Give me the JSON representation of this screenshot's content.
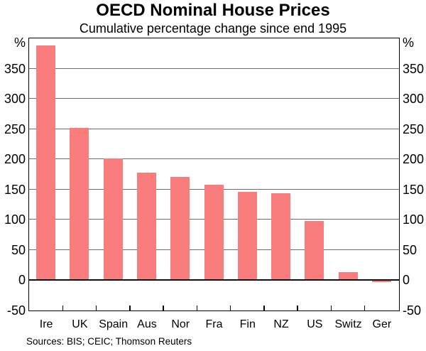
{
  "chart_data": {
    "type": "bar",
    "title": "OECD Nominal House Prices",
    "subtitle": "Cumulative percentage change since end 1995",
    "unit": "%",
    "categories": [
      "Ire",
      "UK",
      "Spain",
      "Aus",
      "Nor",
      "Fra",
      "Fin",
      "NZ",
      "US",
      "Switz",
      "Ger"
    ],
    "values": [
      388,
      252,
      201,
      177,
      170,
      157,
      145,
      143,
      97,
      13,
      -4
    ],
    "ylim": [
      -50,
      400
    ],
    "yticks": [
      -50,
      0,
      50,
      100,
      150,
      200,
      250,
      300,
      350
    ],
    "grid": true,
    "legend": "none",
    "bar_color": "#FA7D7D",
    "gridline_color": "#6e6e6e",
    "sources": "Sources: BIS; CEIC; Thomson Reuters"
  }
}
